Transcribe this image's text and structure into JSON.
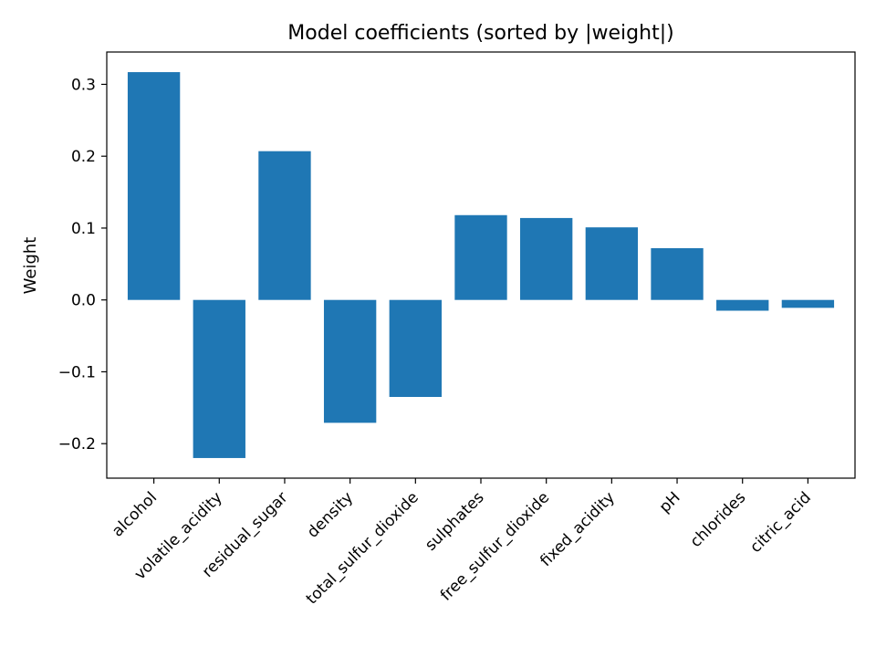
{
  "chart_data": {
    "type": "bar",
    "title": "Model coefficients (sorted by |weight|)",
    "xlabel": "",
    "ylabel": "Weight",
    "categories": [
      "alcohol",
      "volatile_acidity",
      "residual_sugar",
      "density",
      "total_sulfur_dioxide",
      "sulphates",
      "free_sulfur_dioxide",
      "fixed_acidity",
      "pH",
      "chlorides",
      "citric_acid"
    ],
    "values": [
      0.317,
      -0.22,
      0.207,
      -0.171,
      -0.135,
      0.118,
      0.114,
      0.101,
      0.072,
      -0.015,
      -0.011
    ],
    "ylim": [
      -0.248,
      0.345
    ],
    "yticks": [
      -0.2,
      -0.1,
      0.0,
      0.1,
      0.2,
      0.3
    ],
    "ytick_labels": [
      "−0.2",
      "−0.1",
      "0.0",
      "0.1",
      "0.2",
      "0.3"
    ],
    "bar_color": "#1f77b4",
    "grid": false,
    "legend": "none"
  }
}
